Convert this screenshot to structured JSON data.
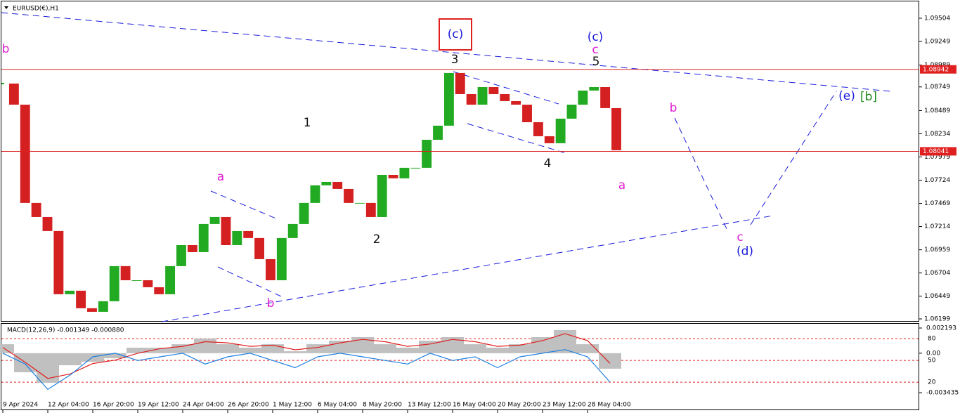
{
  "chart_data": [
    {
      "type": "candlestick",
      "title": "EURUSD(€),H1",
      "values": [
        1.08786,
        1.08554,
        1.07474,
        1.07319,
        1.07165,
        1.0647,
        1.06509,
        1.06316,
        1.06277,
        1.06393,
        1.06779,
        1.06624,
        1.06624,
        1.06547,
        1.0647,
        1.06779,
        1.0701,
        1.06933,
        1.07242,
        1.07319,
        1.0701,
        1.07165,
        1.07088,
        1.06856,
        1.06624,
        1.07088,
        1.07242,
        1.07474,
        1.07667,
        1.07705,
        1.07628,
        1.07474,
        1.07474,
        1.07319,
        1.07782,
        1.07744,
        1.0786,
        1.0786,
        1.08168,
        1.08323,
        1.08902,
        1.0867,
        1.08554,
        1.08747,
        1.0867,
        1.08593,
        1.08554,
        1.08361,
        1.08207,
        1.0813,
        1.084,
        1.08554,
        1.08709,
        1.08747,
        1.08516,
        1.08053
      ],
      "up_color": "#22aa22",
      "down_color": "#d42020",
      "ylim": [
        1.06176,
        1.09689
      ],
      "yticks": [
        1.09504,
        1.09249,
        1.08989,
        1.08749,
        1.08489,
        1.08234,
        1.07979,
        1.07724,
        1.07469,
        1.07214,
        1.06959,
        1.06704,
        1.06449,
        1.06199
      ],
      "hlines": [
        1.08942,
        1.08041
      ],
      "hline_color": "#e02020",
      "time_labels": [
        "9 Apr 2024",
        "12 Apr 04:00",
        "16 Apr 20:00",
        "19 Apr 12:00",
        "24 Apr 04:00",
        "26 Apr 20:00",
        "1 May 12:00",
        "6 May 04:00",
        "8 May 20:00",
        "13 May 12:00",
        "16 May 04:00",
        "20 May 20:00",
        "23 May 12:00",
        "28 May 04:00"
      ],
      "annotations": [
        {
          "text": "(c)",
          "color": "#1a1adb",
          "boxed": true
        },
        {
          "text": "3",
          "color": "#111111"
        },
        {
          "text": "(c)",
          "color": "#1a1adb"
        },
        {
          "text": "c",
          "color": "#e020d0"
        },
        {
          "text": "5",
          "color": "#111111"
        },
        {
          "text": "1",
          "color": "#111111"
        },
        {
          "text": "2",
          "color": "#111111"
        },
        {
          "text": "4",
          "color": "#111111"
        },
        {
          "text": "a",
          "color": "#e020d0"
        },
        {
          "text": "b",
          "color": "#e020d0"
        },
        {
          "text": "a",
          "color": "#e020d0"
        },
        {
          "text": "b",
          "color": "#e020d0"
        },
        {
          "text": "c",
          "color": "#e020d0"
        },
        {
          "text": "(d)",
          "color": "#1a1adb"
        },
        {
          "text": "(e)",
          "color": "#1a1adb"
        },
        {
          "text": "[b]",
          "color": "#1a8a1a"
        },
        {
          "text": "b",
          "color": "#e020d0"
        }
      ]
    },
    {
      "type": "macd",
      "title": "MACD(12,26,9) -0.001349 -0.000880",
      "series": [
        {
          "color": "#c0c0c0",
          "values": [
            0.00078,
            -0.00166,
            -0.00258,
            -0.00105,
            -0.00075,
            -0.00044,
            0.00048,
            0.00048,
            0.00078,
            0.00127,
            0.00078,
            0.00048,
            0.00078,
            0.00017,
            0.00078,
            0.00109,
            0.0014,
            0.00078,
            0.00048,
            0.00109,
            0.0014,
            0.00078,
            0.00048,
            0.00078,
            0.0014,
            0.00201,
            0.00078,
            -0.001349
          ]
        },
        {
          "color": "#e02020",
          "values": [
            0.0005,
            -0.0008,
            -0.0022,
            -0.0018,
            -0.0009,
            -0.0006,
            0.0,
            0.0004,
            0.0006,
            0.001,
            0.0009,
            0.0006,
            0.0007,
            0.0003,
            0.0005,
            0.0009,
            0.0012,
            0.001,
            0.0006,
            0.0008,
            0.0012,
            0.001,
            0.0006,
            0.0007,
            0.0011,
            0.0017,
            0.0011,
            -0.00088
          ]
        },
        {
          "color": "#1e7fe0",
          "axis": "y2",
          "values": [
            60,
            45,
            10,
            30,
            55,
            60,
            50,
            55,
            60,
            45,
            55,
            60,
            50,
            40,
            55,
            60,
            55,
            50,
            45,
            60,
            50,
            55,
            40,
            55,
            60,
            65,
            55,
            20
          ]
        }
      ],
      "ylim": [
        -0.0049,
        0.00256
      ],
      "yticks": [
        0.002193,
        {
          "value": 0,
          "label": "0.00"
        },
        -0.003435
      ],
      "y2lim": [
        -17.7,
        100.6
      ],
      "y2ticks": [
        80,
        50,
        20
      ]
    }
  ]
}
